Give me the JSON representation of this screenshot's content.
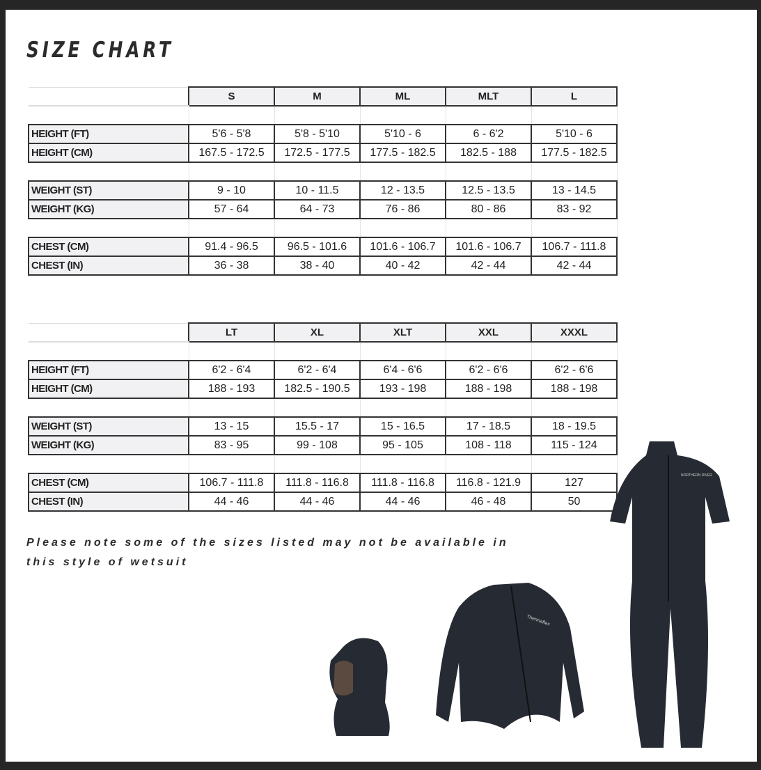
{
  "title": "SIZE CHART",
  "row_labels": [
    "HEIGHT (FT)",
    "HEIGHT (CM)",
    "WEIGHT (ST)",
    "WEIGHT (KG)",
    "CHEST (CM)",
    "CHEST (IN)"
  ],
  "tables": [
    {
      "sizes": [
        "S",
        "M",
        "ML",
        "MLT",
        "L"
      ],
      "rows": [
        [
          "5'6 - 5'8",
          "5'8 - 5'10",
          "5'10 - 6",
          "6 - 6'2",
          "5'10 - 6"
        ],
        [
          "167.5 - 172.5",
          "172.5 - 177.5",
          "177.5 - 182.5",
          "182.5 - 188",
          "177.5 - 182.5"
        ],
        [
          "9 - 10",
          "10 - 11.5",
          "12 - 13.5",
          "12.5 - 13.5",
          "13 - 14.5"
        ],
        [
          "57 - 64",
          "64 - 73",
          "76 - 86",
          "80 - 86",
          "83 - 92"
        ],
        [
          "91.4 - 96.5",
          "96.5 - 101.6",
          "101.6 - 106.7",
          "101.6 - 106.7",
          "106.7 - 111.8"
        ],
        [
          "36 - 38",
          "38 - 40",
          "40 - 42",
          "42 - 44",
          "42 - 44"
        ]
      ]
    },
    {
      "sizes": [
        "LT",
        "XL",
        "XLT",
        "XXL",
        "XXXL"
      ],
      "rows": [
        [
          "6'2 - 6'4",
          "6'2 - 6'4",
          "6'4 - 6'6",
          "6'2 - 6'6",
          "6'2 - 6'6"
        ],
        [
          "188 - 193",
          "182.5 - 190.5",
          "193 - 198",
          "188 - 198",
          "188 - 198"
        ],
        [
          "13 - 15",
          "15.5 - 17",
          "15 - 16.5",
          "17 - 18.5",
          "18 - 19.5"
        ],
        [
          "83 - 95",
          "99 - 108",
          "95 - 105",
          "108 - 118",
          "115 - 124"
        ],
        [
          "106.7 - 111.8",
          "111.8 - 116.8",
          "111.8 - 116.8",
          "116.8 - 121.9",
          "127"
        ],
        [
          "44 - 46",
          "44 - 46",
          "44 - 46",
          "46 - 48",
          "50"
        ]
      ]
    }
  ],
  "note": "Please note some of the sizes listed may not be available in this style of wetsuit",
  "products": {
    "hood_icon": "neoprene-hood",
    "jacket_icon": "wetsuit-jacket",
    "jacket_logo": "Thermaflex",
    "suit_icon": "full-wetsuit",
    "suit_logo": "NORTHERN DIVER"
  },
  "colors": {
    "frame": "#262626",
    "neoprene": "#262b33",
    "label_bg": "#f1f1f3"
  }
}
